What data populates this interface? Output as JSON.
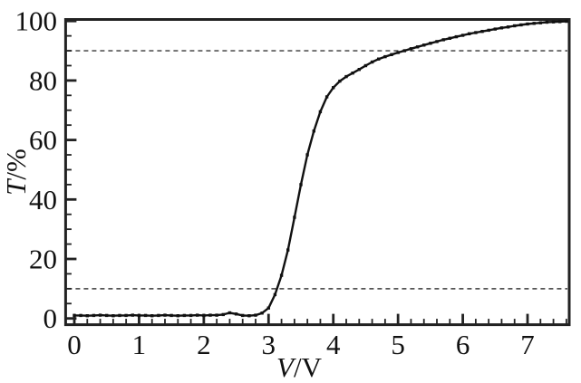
{
  "chart_data": {
    "type": "line",
    "title": "",
    "xlabel": "V/V",
    "xlabel_sym": "V",
    "xlabel_unit": "/V",
    "ylabel": "T/%",
    "ylabel_sym": "T",
    "ylabel_unit": "/%",
    "xlim": [
      -0.15,
      7.65
    ],
    "ylim": [
      -2.5,
      100.5
    ],
    "grid": false,
    "legend": "none",
    "x_major_ticks": [
      0,
      1,
      2,
      3,
      4,
      5,
      6,
      7
    ],
    "x_tick_labels": [
      "0",
      "1",
      "2",
      "3",
      "4",
      "5",
      "6",
      "7"
    ],
    "x_minor_step": 0.2,
    "x_minor_max": 7.6,
    "y_major_ticks": [
      0,
      20,
      40,
      60,
      80,
      100
    ],
    "y_tick_labels": [
      "0",
      "20",
      "40",
      "60",
      "80",
      "100"
    ],
    "y_minor_step": 5,
    "reference_lines": [
      {
        "axis": "y",
        "value": 90,
        "style": "dashed"
      },
      {
        "axis": "y",
        "value": 10,
        "style": "dashed"
      }
    ],
    "colors": {
      "curve": "#111111",
      "axis": "#222222",
      "dashed": "#555555",
      "background": "#ffffff",
      "text": "#111111"
    },
    "series": [
      {
        "name": "transmittance-vs-voltage",
        "marker": "square",
        "points": [
          [
            0.0,
            1.0
          ],
          [
            0.1,
            1.0
          ],
          [
            0.2,
            0.9
          ],
          [
            0.3,
            1.0
          ],
          [
            0.4,
            1.1
          ],
          [
            0.5,
            1.0
          ],
          [
            0.6,
            0.9
          ],
          [
            0.7,
            1.0
          ],
          [
            0.8,
            1.0
          ],
          [
            0.9,
            1.1
          ],
          [
            1.0,
            1.0
          ],
          [
            1.1,
            1.0
          ],
          [
            1.2,
            0.9
          ],
          [
            1.3,
            1.0
          ],
          [
            1.4,
            1.1
          ],
          [
            1.5,
            1.0
          ],
          [
            1.6,
            0.9
          ],
          [
            1.7,
            1.0
          ],
          [
            1.8,
            1.0
          ],
          [
            1.9,
            1.1
          ],
          [
            2.0,
            1.0
          ],
          [
            2.1,
            1.1
          ],
          [
            2.2,
            1.1
          ],
          [
            2.3,
            1.3
          ],
          [
            2.4,
            1.9
          ],
          [
            2.5,
            1.5
          ],
          [
            2.6,
            1.0
          ],
          [
            2.7,
            0.9
          ],
          [
            2.8,
            1.1
          ],
          [
            2.9,
            1.8
          ],
          [
            3.0,
            3.5
          ],
          [
            3.1,
            8.0
          ],
          [
            3.2,
            14.5
          ],
          [
            3.3,
            23.0
          ],
          [
            3.4,
            34.0
          ],
          [
            3.5,
            45.0
          ],
          [
            3.6,
            55.0
          ],
          [
            3.7,
            63.0
          ],
          [
            3.8,
            69.5
          ],
          [
            3.9,
            74.5
          ],
          [
            4.0,
            77.6
          ],
          [
            4.1,
            79.8
          ],
          [
            4.2,
            81.3
          ],
          [
            4.3,
            82.5
          ],
          [
            4.4,
            83.7
          ],
          [
            4.5,
            85.0
          ],
          [
            4.6,
            86.2
          ],
          [
            4.7,
            87.2
          ],
          [
            4.8,
            88.0
          ],
          [
            4.9,
            88.7
          ],
          [
            5.0,
            89.4
          ],
          [
            5.1,
            90.0
          ],
          [
            5.2,
            90.7
          ],
          [
            5.3,
            91.3
          ],
          [
            5.4,
            91.9
          ],
          [
            5.5,
            92.5
          ],
          [
            5.6,
            93.1
          ],
          [
            5.7,
            93.7
          ],
          [
            5.8,
            94.2
          ],
          [
            5.9,
            94.7
          ],
          [
            6.0,
            95.2
          ],
          [
            6.1,
            95.7
          ],
          [
            6.2,
            96.1
          ],
          [
            6.3,
            96.5
          ],
          [
            6.4,
            96.9
          ],
          [
            6.5,
            97.3
          ],
          [
            6.6,
            97.7
          ],
          [
            6.7,
            98.0
          ],
          [
            6.8,
            98.4
          ],
          [
            6.9,
            98.7
          ],
          [
            7.0,
            99.0
          ],
          [
            7.1,
            99.2
          ],
          [
            7.2,
            99.4
          ],
          [
            7.3,
            99.6
          ],
          [
            7.4,
            99.7
          ],
          [
            7.5,
            99.8
          ],
          [
            7.6,
            99.9
          ]
        ]
      }
    ]
  }
}
